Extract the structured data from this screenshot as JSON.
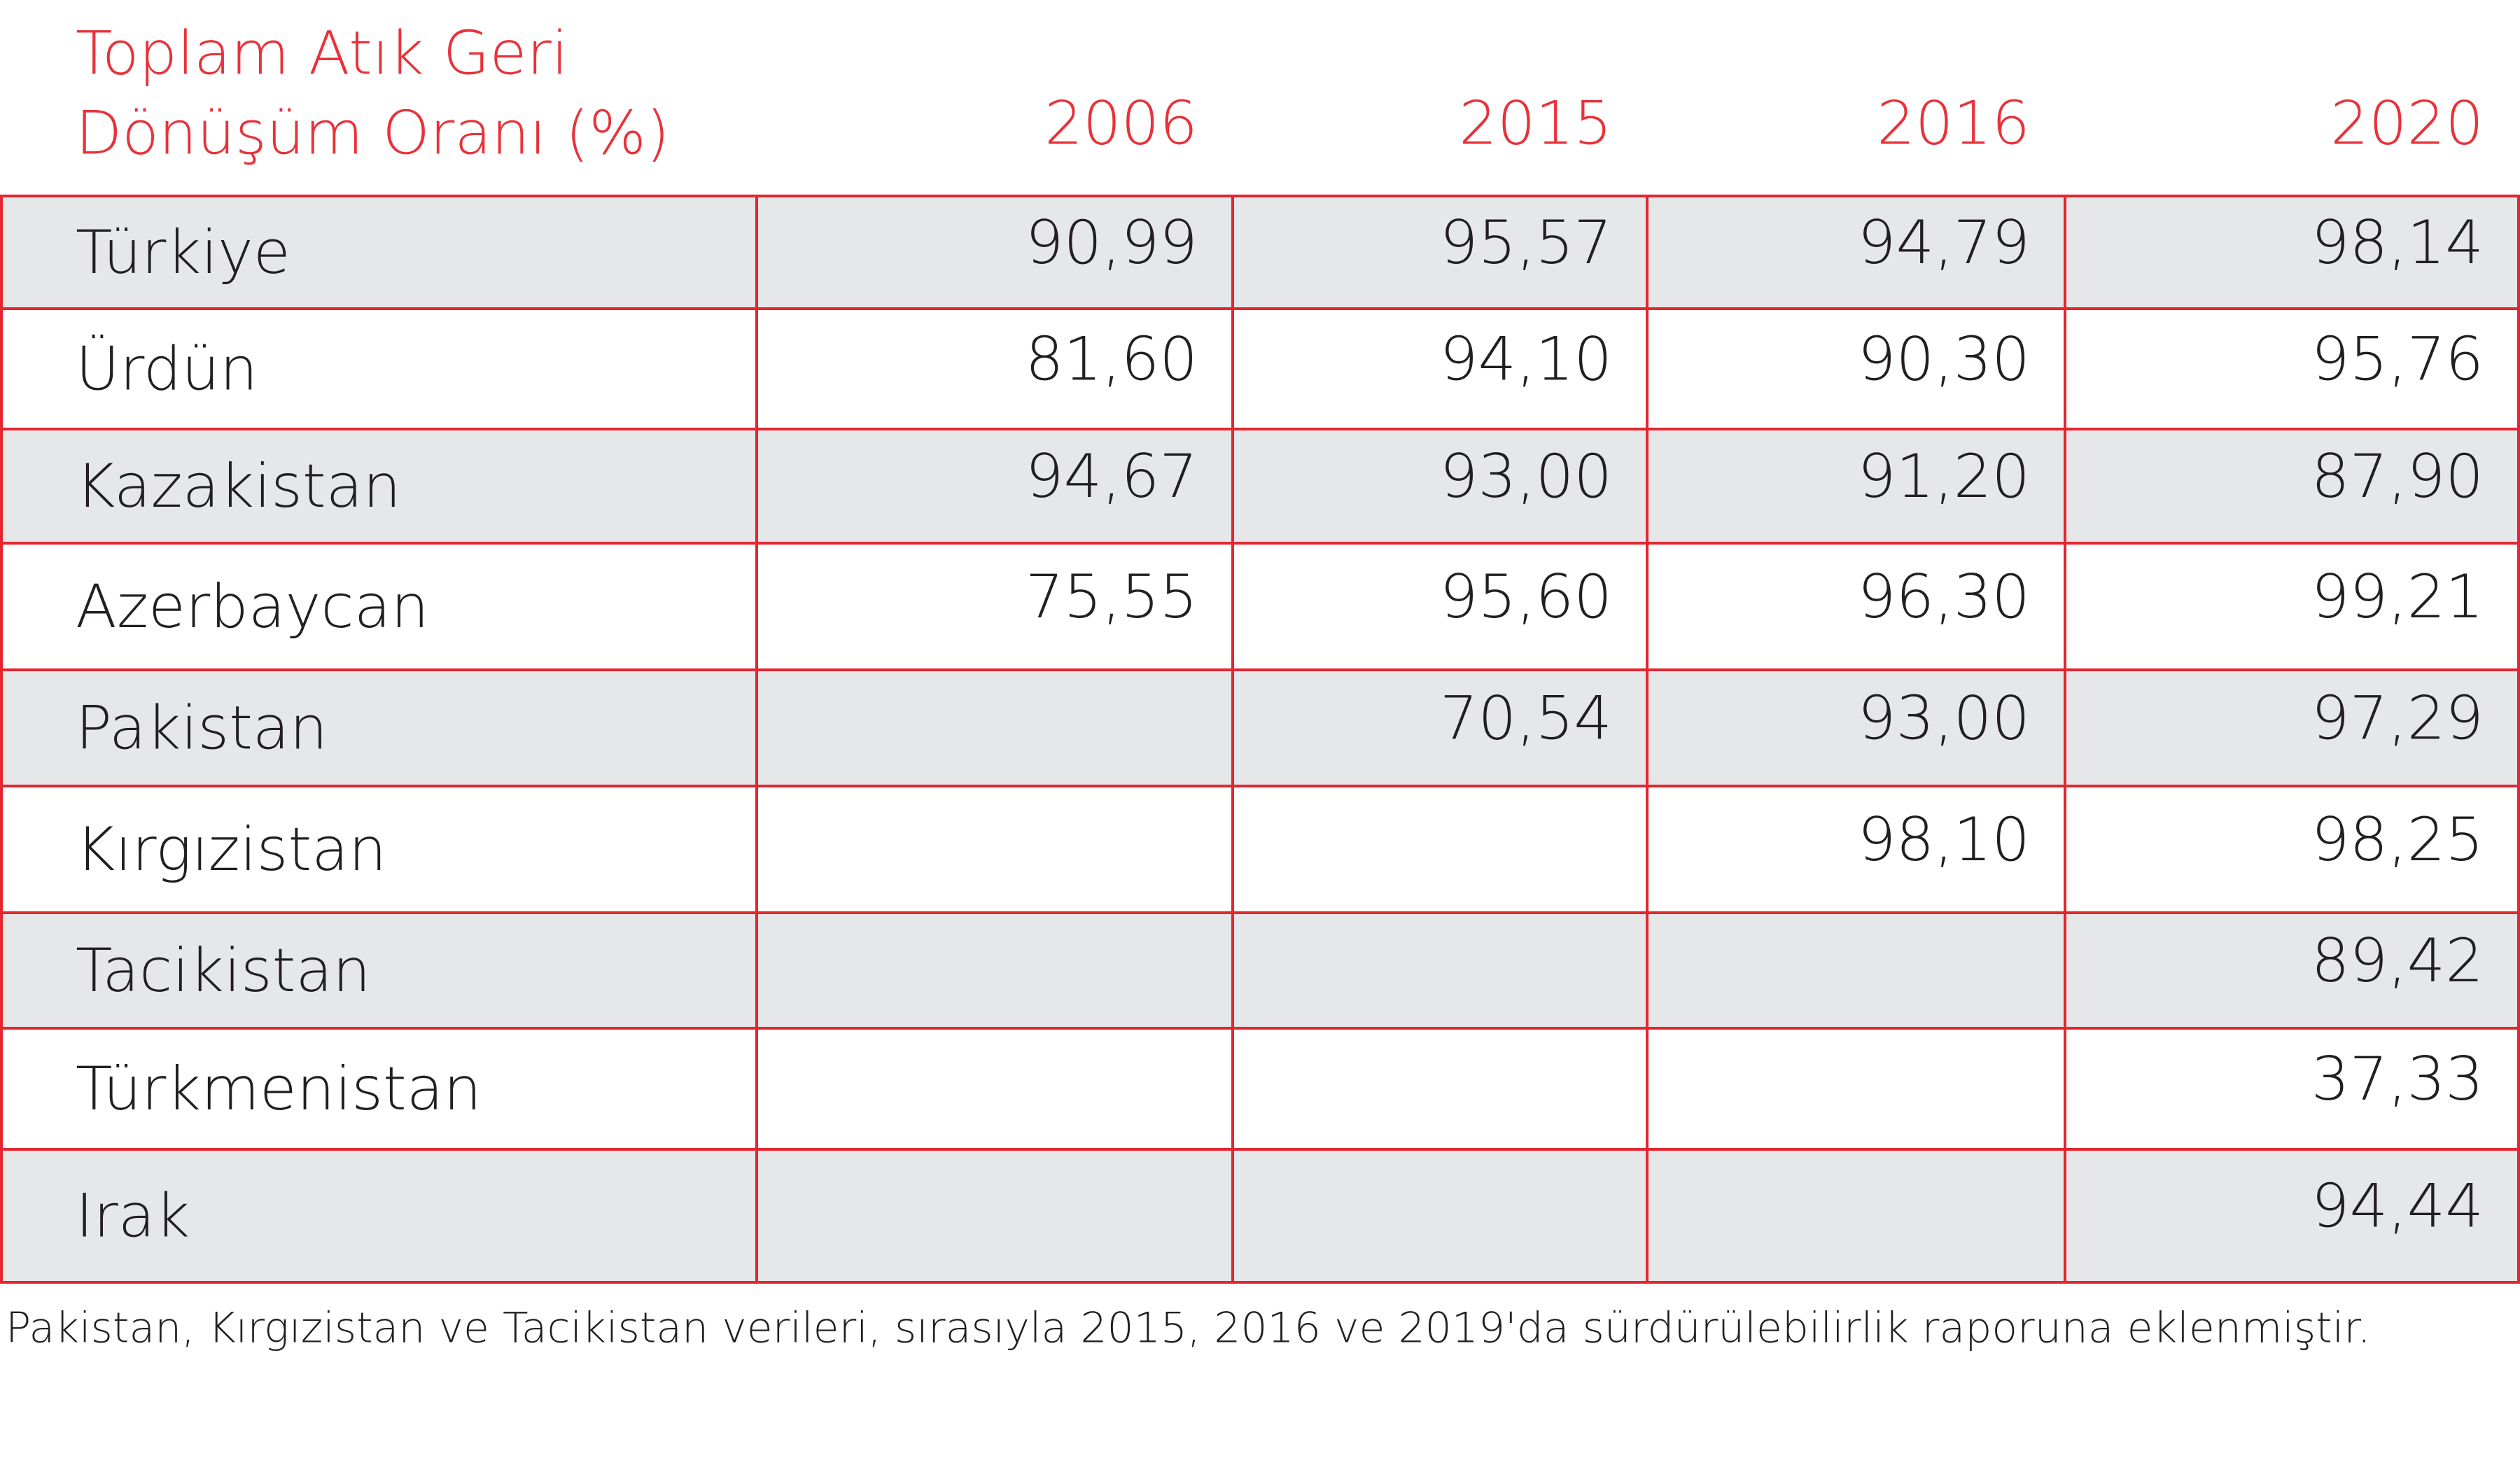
{
  "header": {
    "title": [
      "Toplam Atık Geri",
      "Dönüşüm Oranı (%)"
    ],
    "columns": [
      "2006",
      "2015",
      "2016",
      "2020"
    ]
  },
  "table": {
    "rows": [
      [
        "Türkiye",
        "90,99",
        "95,57",
        "94,79",
        "98,14"
      ],
      [
        "Ürdün",
        "81,60",
        "94,10",
        "90,30",
        "95,76"
      ],
      [
        "Kazakistan",
        "94,67",
        "93,00",
        "91,20",
        "87,90"
      ],
      [
        "Azerbaycan",
        "75,55",
        "95,60",
        "96,30",
        "99,21"
      ],
      [
        "Pakistan",
        null,
        "70,54",
        "93,00",
        "97,29"
      ],
      [
        "Kırgızistan",
        null,
        null,
        "98,10",
        "98,25"
      ],
      [
        "Tacikistan",
        null,
        null,
        null,
        "89,42"
      ],
      [
        "Türkmenistan",
        null,
        null,
        null,
        "37,33"
      ],
      [
        "Irak",
        null,
        null,
        null,
        "94,44"
      ]
    ]
  },
  "footnote": "Pakistan, Kırgızistan ve Tacikistan verileri, sırasıyla 2015, 2016 ve 2019'da sürdürülebilirlik raporuna eklenmiştir."
}
